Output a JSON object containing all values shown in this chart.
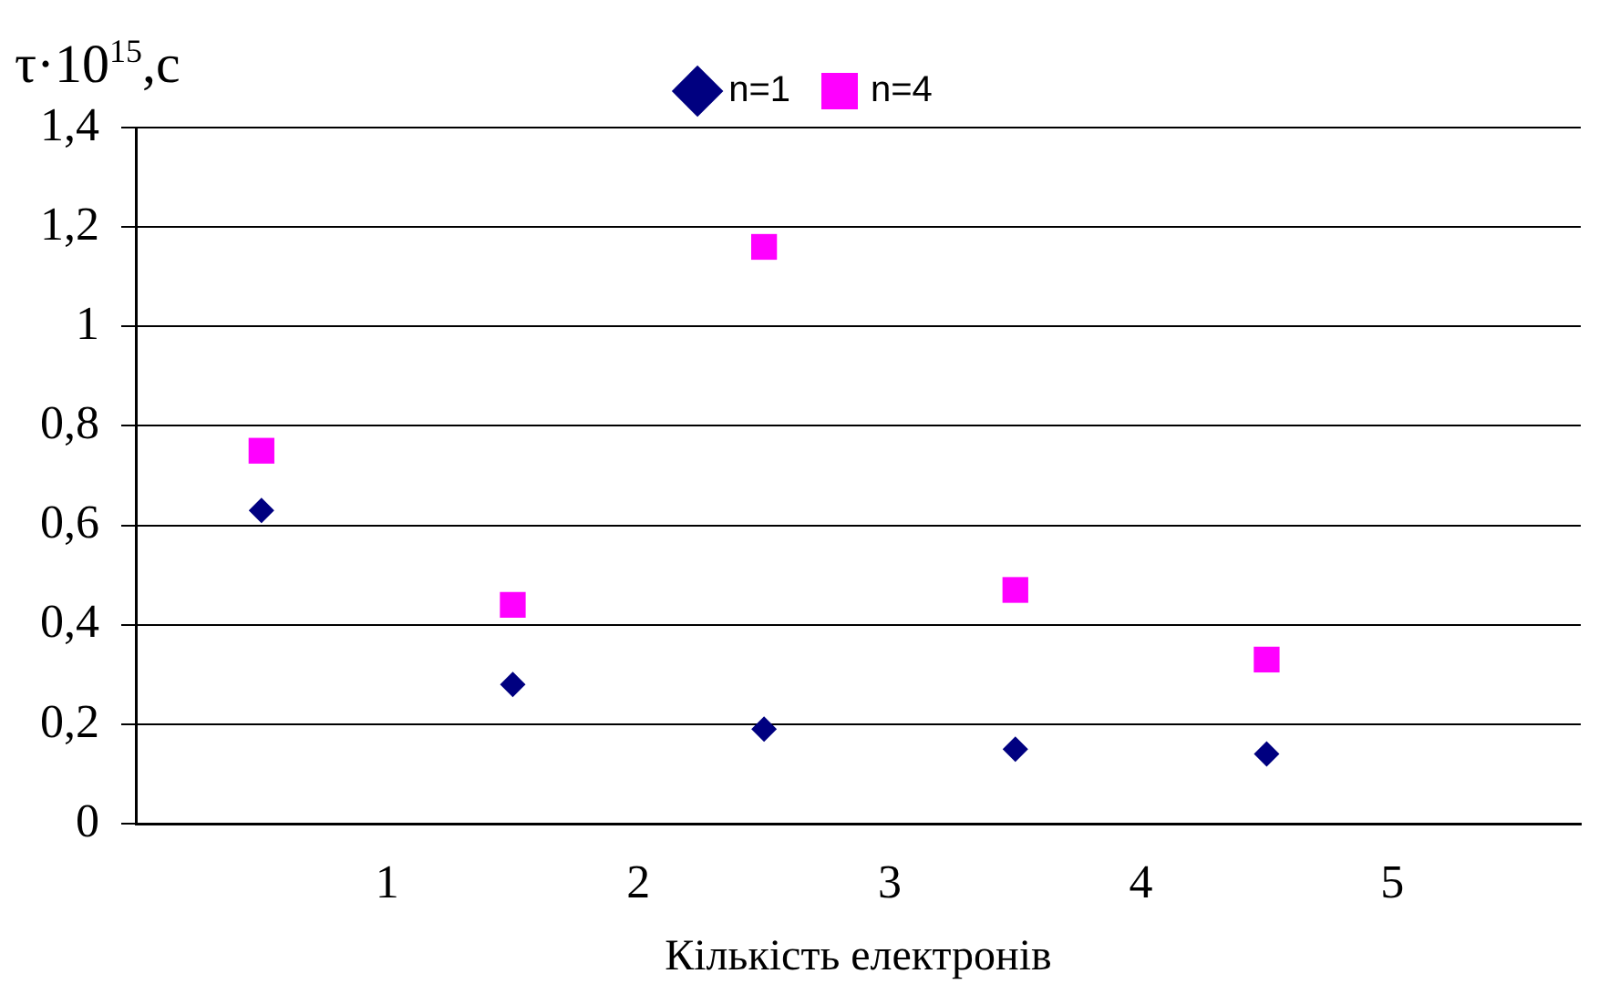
{
  "chart_data": {
    "type": "scatter",
    "ylabel": "τ·10$^{15}$,c",
    "xlabel": "Кількість електронів",
    "x": [
      0.5,
      1.5,
      2.5,
      3.5,
      4.5
    ],
    "series": [
      {
        "name": "n=1",
        "color": "#000080",
        "marker": "diamond",
        "values": [
          0.63,
          0.28,
          0.19,
          0.15,
          0.14
        ]
      },
      {
        "name": "n=4",
        "color": "#ff00ff",
        "marker": "square",
        "values": [
          0.75,
          0.44,
          1.16,
          0.47,
          0.33
        ]
      }
    ],
    "xlim": [
      0,
      5.75
    ],
    "xticks": [
      1,
      2,
      3,
      4,
      5
    ],
    "ylim": [
      0,
      1.4
    ],
    "yticks": [
      0,
      {
        "value": 0.2,
        "label": "0,2"
      },
      {
        "value": 0.4,
        "label": "0,4"
      },
      {
        "value": 0.6,
        "label": "0,6"
      },
      {
        "value": 0.8,
        "label": "0,8"
      },
      1,
      {
        "value": 1.2,
        "label": "1,2"
      },
      {
        "value": 1.4,
        "label": "1,4"
      }
    ],
    "grid": "y",
    "legend": "top"
  }
}
